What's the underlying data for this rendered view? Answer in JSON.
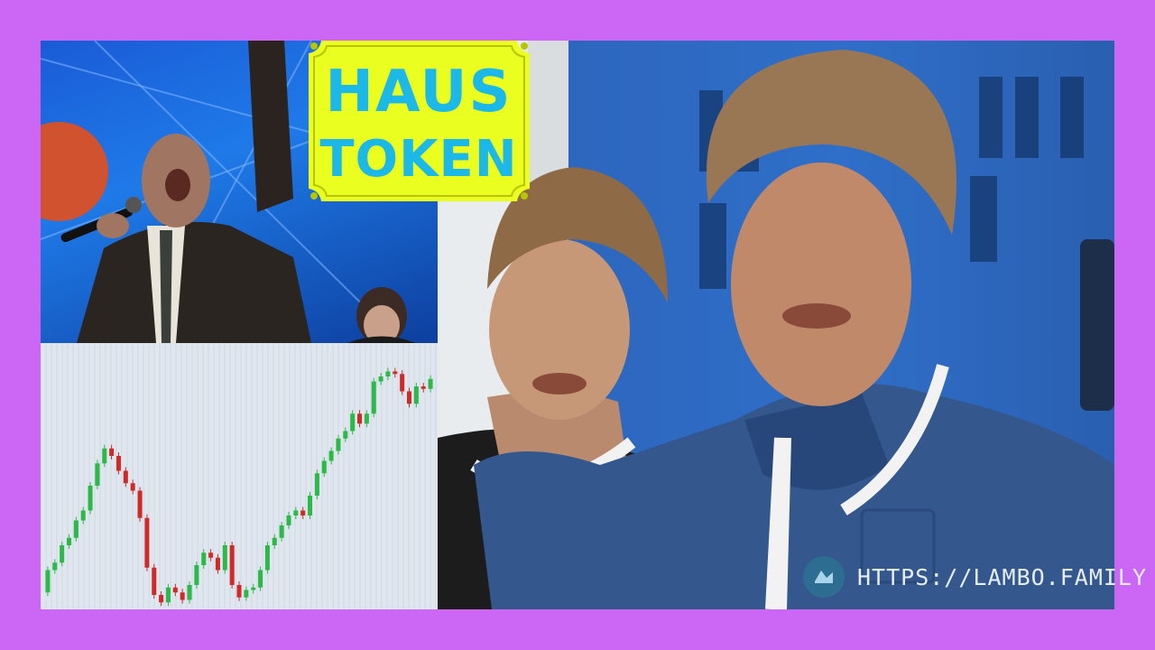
{
  "logo": {
    "line1": "HAUS",
    "line2": "TOKEN"
  },
  "footer": {
    "url": "HTTPS://LAMBO.FAMILY"
  },
  "colors": {
    "frame": "#cc66f5",
    "logo_bg": "#eaff1f",
    "logo_text": "#1bb8e8",
    "candle_up": "#2db84a",
    "candle_down": "#cf2a2a"
  },
  "chart_data": {
    "type": "candlestick",
    "title": "",
    "xlabel": "",
    "ylabel": "",
    "ylim": [
      0,
      100
    ],
    "candles": [
      {
        "o": 5,
        "c": 14
      },
      {
        "o": 14,
        "c": 17
      },
      {
        "o": 17,
        "c": 24
      },
      {
        "o": 24,
        "c": 27
      },
      {
        "o": 27,
        "c": 34
      },
      {
        "o": 34,
        "c": 38
      },
      {
        "o": 38,
        "c": 48
      },
      {
        "o": 48,
        "c": 57
      },
      {
        "o": 57,
        "c": 63
      },
      {
        "o": 63,
        "c": 60
      },
      {
        "o": 60,
        "c": 54
      },
      {
        "o": 54,
        "c": 49
      },
      {
        "o": 49,
        "c": 46
      },
      {
        "o": 46,
        "c": 35
      },
      {
        "o": 35,
        "c": 15
      },
      {
        "o": 15,
        "c": 4
      },
      {
        "o": 4,
        "c": 1
      },
      {
        "o": 1,
        "c": 7
      },
      {
        "o": 7,
        "c": 5
      },
      {
        "o": 5,
        "c": 2
      },
      {
        "o": 2,
        "c": 8
      },
      {
        "o": 8,
        "c": 16
      },
      {
        "o": 16,
        "c": 21
      },
      {
        "o": 21,
        "c": 19
      },
      {
        "o": 19,
        "c": 14
      },
      {
        "o": 14,
        "c": 24
      },
      {
        "o": 24,
        "c": 8
      },
      {
        "o": 8,
        "c": 3
      },
      {
        "o": 3,
        "c": 6
      },
      {
        "o": 6,
        "c": 7
      },
      {
        "o": 7,
        "c": 14
      },
      {
        "o": 14,
        "c": 24
      },
      {
        "o": 24,
        "c": 27
      },
      {
        "o": 27,
        "c": 32
      },
      {
        "o": 32,
        "c": 36
      },
      {
        "o": 36,
        "c": 38
      },
      {
        "o": 38,
        "c": 36
      },
      {
        "o": 36,
        "c": 44
      },
      {
        "o": 44,
        "c": 53
      },
      {
        "o": 53,
        "c": 58
      },
      {
        "o": 58,
        "c": 62
      },
      {
        "o": 62,
        "c": 67
      },
      {
        "o": 67,
        "c": 70
      },
      {
        "o": 70,
        "c": 77
      },
      {
        "o": 77,
        "c": 73
      },
      {
        "o": 73,
        "c": 77
      },
      {
        "o": 77,
        "c": 90
      },
      {
        "o": 90,
        "c": 92
      },
      {
        "o": 92,
        "c": 94
      },
      {
        "o": 94,
        "c": 93
      },
      {
        "o": 93,
        "c": 86
      },
      {
        "o": 86,
        "c": 81
      },
      {
        "o": 81,
        "c": 88
      },
      {
        "o": 88,
        "c": 87
      },
      {
        "o": 87,
        "c": 91
      }
    ]
  }
}
